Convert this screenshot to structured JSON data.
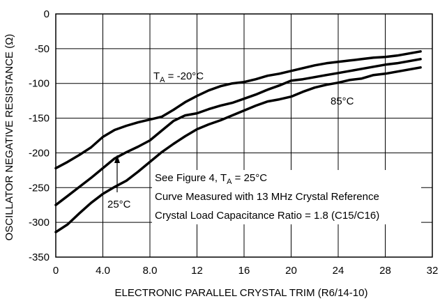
{
  "chart_data": {
    "type": "line",
    "title": "",
    "xlabel": "ELECTRONIC PARALLEL CRYSTAL TRIM (R6/14-10)",
    "ylabel": "OSCILLATOR NEGATIVE RESISTANCE (Ω)",
    "xlim": [
      0,
      32
    ],
    "ylim": [
      -350,
      0
    ],
    "grid": true,
    "x_tick_labels": [
      "0",
      "4.0",
      "8.0",
      "12",
      "16",
      "20",
      "24",
      "28",
      "32"
    ],
    "y_tick_labels": [
      "0",
      "-50",
      "-100",
      "-150",
      "-200",
      "-250",
      "-300",
      "-350"
    ],
    "series": [
      {
        "name": "T_A = -20°C",
        "x": [
          0,
          1,
          2,
          3,
          4,
          5,
          6,
          7,
          8,
          9,
          10,
          11,
          12,
          13,
          14,
          15,
          16,
          17,
          18,
          19,
          20,
          21,
          22,
          23,
          24,
          25,
          26,
          27,
          28,
          29,
          30,
          31
        ],
        "y": [
          -222,
          -213,
          -203,
          -192,
          -177,
          -167,
          -161,
          -156,
          -152,
          -148,
          -138,
          -127,
          -118,
          -110,
          -104,
          -100,
          -98,
          -94,
          -89,
          -86,
          -82,
          -78,
          -74,
          -71,
          -69,
          -67,
          -65,
          -63,
          -62,
          -60,
          -57,
          -54
        ]
      },
      {
        "name": "25°C",
        "x": [
          0,
          1,
          2,
          3,
          4,
          5,
          6,
          7,
          8,
          9,
          10,
          11,
          12,
          13,
          14,
          15,
          16,
          17,
          18,
          19,
          20,
          21,
          22,
          23,
          24,
          25,
          26,
          27,
          28,
          29,
          30,
          31
        ],
        "y": [
          -275,
          -262,
          -249,
          -236,
          -222,
          -208,
          -199,
          -191,
          -182,
          -168,
          -154,
          -146,
          -143,
          -137,
          -132,
          -128,
          -122,
          -116,
          -109,
          -103,
          -96,
          -94,
          -91,
          -88,
          -85,
          -82,
          -79,
          -76,
          -73,
          -71,
          -68,
          -65
        ]
      },
      {
        "name": "85°C",
        "x": [
          0,
          1,
          2,
          3,
          4,
          5,
          6,
          7,
          8,
          9,
          10,
          11,
          12,
          13,
          14,
          15,
          16,
          17,
          18,
          19,
          20,
          21,
          22,
          23,
          24,
          25,
          26,
          27,
          28,
          29,
          30,
          31
        ],
        "y": [
          -314,
          -303,
          -287,
          -272,
          -259,
          -249,
          -240,
          -227,
          -213,
          -199,
          -187,
          -176,
          -166,
          -159,
          -153,
          -146,
          -139,
          -132,
          -126,
          -123,
          -119,
          -112,
          -106,
          -102,
          -99,
          -95,
          -93,
          -88,
          -86,
          -83,
          -80,
          -77
        ]
      }
    ],
    "annotations": {
      "t20_prefix": "T",
      "t20_sub": "A",
      "t20_suffix": " = -20°C",
      "t85": "85°C",
      "t25": "25°C",
      "note_line1_prefix": "See Figure 4, T",
      "note_line1_sub": "A",
      "note_line1_suffix": " = 25°C",
      "note_line2": "Curve Measured with 13 MHz Crystal Reference",
      "note_line3": "Crystal Load Capacitance Ratio = 1.8 (C15/C16)"
    }
  }
}
